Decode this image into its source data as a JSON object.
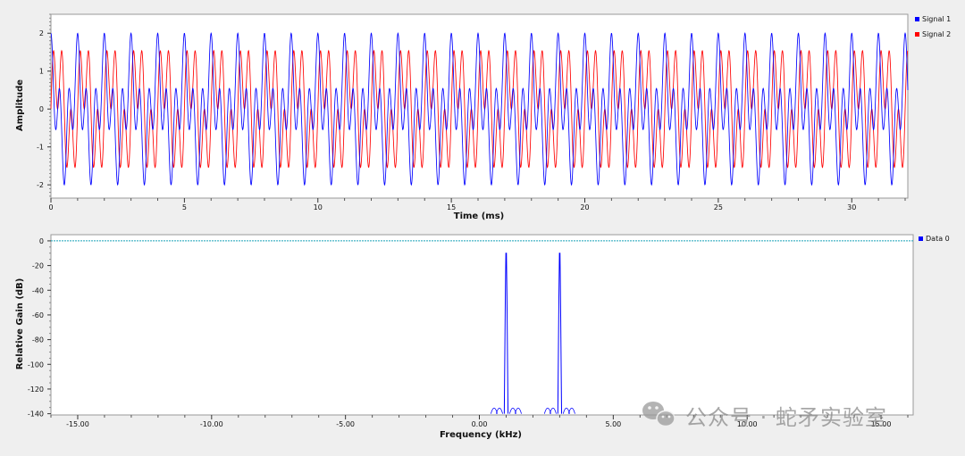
{
  "colors": {
    "background": "#efefef",
    "plot_background": "#ffffff",
    "signal1": "#0000ff",
    "signal2": "#ff0000",
    "data0": "#0000ff",
    "reference_line": "#17a2b8",
    "watermark": "#8a8a8a"
  },
  "watermark": {
    "icon": "wechat-icon",
    "text": "公众号 · 蛇矛实验室"
  },
  "chart_data": [
    {
      "type": "line",
      "title": "",
      "xlabel": "Time (ms)",
      "ylabel": "Amplitude",
      "xlim": [
        0,
        32.1
      ],
      "ylim": [
        -2.35,
        2.5
      ],
      "x_ticks": [
        0,
        5,
        10,
        15,
        20,
        25,
        30
      ],
      "x_tick_labels": [
        "0",
        "5",
        "10",
        "15",
        "20",
        "25",
        "30"
      ],
      "y_ticks": [
        2,
        1,
        0,
        -1,
        -2
      ],
      "y_tick_labels": [
        "2",
        "1",
        "0",
        "-1",
        "-2"
      ],
      "grid": false,
      "legend_position": "right",
      "series": [
        {
          "name": "Signal 1",
          "color": "#0000ff",
          "components": [
            {
              "amplitude": 1,
              "frequency_khz": 1,
              "phase": "cos"
            },
            {
              "amplitude": 1,
              "frequency_khz": 3,
              "phase": "cos"
            }
          ]
        },
        {
          "name": "Signal 2",
          "color": "#ff0000",
          "components": [
            {
              "amplitude": 1,
              "frequency_khz": 1,
              "phase": "sin"
            },
            {
              "amplitude": 1,
              "frequency_khz": 3,
              "phase": "sin"
            }
          ]
        }
      ]
    },
    {
      "type": "line",
      "title": "",
      "xlabel": "Frequency (kHz)",
      "ylabel": "Relative Gain (dB)",
      "xlim": [
        -16,
        16.2
      ],
      "ylim": [
        -141,
        5
      ],
      "x_ticks": [
        -15,
        -10,
        -5,
        0,
        5,
        10,
        15
      ],
      "x_tick_labels": [
        "-15.00",
        "-10.00",
        "-5.00",
        "0.00",
        "5.00",
        "10.00",
        "15.00"
      ],
      "y_ticks": [
        0,
        -20,
        -40,
        -60,
        -80,
        -100,
        -120,
        -140
      ],
      "y_tick_labels": [
        "0",
        "-20",
        "-40",
        "-60",
        "-80",
        "-100",
        "-120",
        "-140"
      ],
      "grid": false,
      "legend_position": "right",
      "reference_line_db": 0,
      "series": [
        {
          "name": "Data 0",
          "color": "#0000ff",
          "floor_db": -140,
          "peaks": [
            {
              "frequency_khz": 1.0,
              "peak_db": -10,
              "sidelobes_khz": [
                -0.45,
                -0.25,
                0.25,
                0.45
              ],
              "sidelobe_db": -133
            },
            {
              "frequency_khz": 3.0,
              "peak_db": -10,
              "sidelobes_khz": [
                -0.45,
                -0.25,
                0.25,
                0.45
              ],
              "sidelobe_db": -133
            }
          ]
        }
      ]
    }
  ]
}
